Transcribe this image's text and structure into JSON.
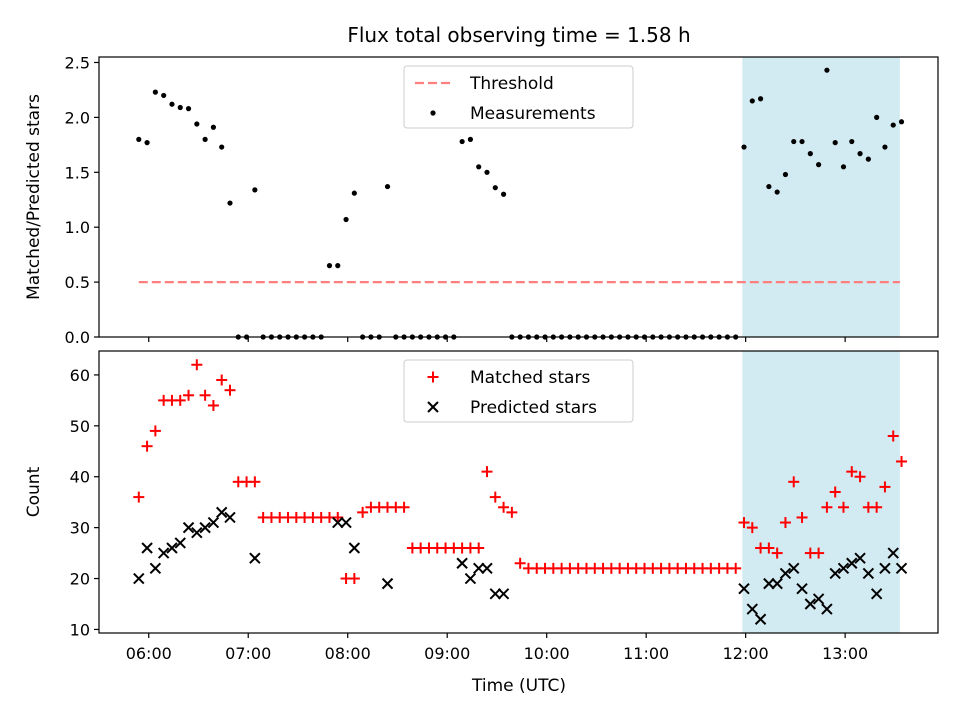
{
  "title": "Flux total observing time = 1.58 h",
  "xlabel": "Time (UTC)",
  "colors": {
    "threshold": "#ff7f7f",
    "measurement": "#000000",
    "matched": "#ff0000",
    "predicted": "#000000",
    "highlight": "#add8e6"
  },
  "chart_data": [
    {
      "type": "scatter",
      "ylabel": "Matched/Predicted stars",
      "xlim": [
        "05:30",
        "13:56"
      ],
      "ylim": [
        0,
        2.55
      ],
      "y_ticks": [
        "0.0",
        "0.5",
        "1.0",
        "1.5",
        "2.0",
        "2.5"
      ],
      "x_ticks": [
        "06:00",
        "07:00",
        "08:00",
        "09:00",
        "10:00",
        "11:00",
        "12:00",
        "13:00"
      ],
      "highlight_span": [
        "11:58",
        "13:33"
      ],
      "threshold": {
        "label": "Threshold",
        "value": 0.5,
        "x_range": [
          "05:54",
          "13:33"
        ]
      },
      "legend": {
        "position": "top-center",
        "entries": [
          "Threshold",
          "Measurements"
        ]
      },
      "series": [
        {
          "name": "Measurements",
          "points": [
            [
              "05:54",
              1.8
            ],
            [
              "05:59",
              1.77
            ],
            [
              "06:04",
              2.23
            ],
            [
              "06:09",
              2.2
            ],
            [
              "06:14",
              2.12
            ],
            [
              "06:19",
              2.09
            ],
            [
              "06:24",
              2.08
            ],
            [
              "06:29",
              1.94
            ],
            [
              "06:34",
              1.8
            ],
            [
              "06:39",
              1.91
            ],
            [
              "06:44",
              1.73
            ],
            [
              "06:49",
              1.22
            ],
            [
              "06:54",
              0
            ],
            [
              "06:59",
              0
            ],
            [
              "07:04",
              1.34
            ],
            [
              "07:09",
              0
            ],
            [
              "07:14",
              0
            ],
            [
              "07:19",
              0
            ],
            [
              "07:24",
              0
            ],
            [
              "07:29",
              0
            ],
            [
              "07:34",
              0
            ],
            [
              "07:39",
              0
            ],
            [
              "07:44",
              0
            ],
            [
              "07:49",
              0.65
            ],
            [
              "07:54",
              0.65
            ],
            [
              "07:59",
              1.07
            ],
            [
              "08:04",
              1.31
            ],
            [
              "08:09",
              0
            ],
            [
              "08:14",
              0
            ],
            [
              "08:19",
              0
            ],
            [
              "08:24",
              1.37
            ],
            [
              "08:29",
              0
            ],
            [
              "08:34",
              0
            ],
            [
              "08:39",
              0
            ],
            [
              "08:44",
              0
            ],
            [
              "08:49",
              0
            ],
            [
              "08:54",
              0
            ],
            [
              "08:59",
              0
            ],
            [
              "09:04",
              0
            ],
            [
              "09:09",
              1.78
            ],
            [
              "09:14",
              1.8
            ],
            [
              "09:19",
              1.55
            ],
            [
              "09:24",
              1.5
            ],
            [
              "09:29",
              1.36
            ],
            [
              "09:34",
              1.3
            ],
            [
              "09:39",
              0
            ],
            [
              "09:44",
              0
            ],
            [
              "09:49",
              0
            ],
            [
              "09:54",
              0
            ],
            [
              "09:59",
              0
            ],
            [
              "10:04",
              0
            ],
            [
              "10:09",
              0
            ],
            [
              "10:14",
              0
            ],
            [
              "10:19",
              0
            ],
            [
              "10:24",
              0
            ],
            [
              "10:29",
              0
            ],
            [
              "10:34",
              0
            ],
            [
              "10:39",
              0
            ],
            [
              "10:44",
              0
            ],
            [
              "10:49",
              0
            ],
            [
              "10:54",
              0
            ],
            [
              "10:59",
              0
            ],
            [
              "11:04",
              0
            ],
            [
              "11:09",
              0
            ],
            [
              "11:14",
              0
            ],
            [
              "11:19",
              0
            ],
            [
              "11:24",
              0
            ],
            [
              "11:29",
              0
            ],
            [
              "11:34",
              0
            ],
            [
              "11:39",
              0
            ],
            [
              "11:44",
              0
            ],
            [
              "11:49",
              0
            ],
            [
              "11:54",
              0
            ],
            [
              "11:59",
              1.73
            ],
            [
              "12:04",
              2.15
            ],
            [
              "12:09",
              2.17
            ],
            [
              "12:14",
              1.37
            ],
            [
              "12:19",
              1.32
            ],
            [
              "12:24",
              1.48
            ],
            [
              "12:29",
              1.78
            ],
            [
              "12:34",
              1.78
            ],
            [
              "12:39",
              1.67
            ],
            [
              "12:44",
              1.57
            ],
            [
              "12:49",
              2.43
            ],
            [
              "12:54",
              1.77
            ],
            [
              "12:59",
              1.55
            ],
            [
              "13:04",
              1.78
            ],
            [
              "13:09",
              1.67
            ],
            [
              "13:14",
              1.62
            ],
            [
              "13:19",
              2.0
            ],
            [
              "13:24",
              1.73
            ],
            [
              "13:29",
              1.93
            ],
            [
              "13:34",
              1.96
            ]
          ]
        }
      ]
    },
    {
      "type": "scatter",
      "ylabel": "Count",
      "xlim": [
        "05:30",
        "13:56"
      ],
      "ylim": [
        9.3,
        64.7
      ],
      "y_ticks": [
        "10",
        "20",
        "30",
        "40",
        "50",
        "60"
      ],
      "x_ticks": [
        "06:00",
        "07:00",
        "08:00",
        "09:00",
        "10:00",
        "11:00",
        "12:00",
        "13:00"
      ],
      "highlight_span": [
        "11:58",
        "13:33"
      ],
      "legend": {
        "position": "top-center",
        "entries": [
          "Matched stars",
          "Predicted stars"
        ]
      },
      "series": [
        {
          "name": "Matched stars",
          "marker": "+",
          "points": [
            [
              "05:54",
              36
            ],
            [
              "05:59",
              46
            ],
            [
              "06:04",
              49
            ],
            [
              "06:09",
              55
            ],
            [
              "06:14",
              55
            ],
            [
              "06:19",
              55
            ],
            [
              "06:24",
              56
            ],
            [
              "06:29",
              62
            ],
            [
              "06:34",
              56
            ],
            [
              "06:39",
              54
            ],
            [
              "06:44",
              59
            ],
            [
              "06:49",
              57
            ],
            [
              "06:54",
              39
            ],
            [
              "06:59",
              39
            ],
            [
              "07:04",
              39
            ],
            [
              "07:09",
              32
            ],
            [
              "07:14",
              32
            ],
            [
              "07:19",
              32
            ],
            [
              "07:24",
              32
            ],
            [
              "07:29",
              32
            ],
            [
              "07:34",
              32
            ],
            [
              "07:39",
              32
            ],
            [
              "07:44",
              32
            ],
            [
              "07:49",
              32
            ],
            [
              "07:54",
              32
            ],
            [
              "07:59",
              20
            ],
            [
              "08:04",
              20
            ],
            [
              "08:09",
              33
            ],
            [
              "08:14",
              34
            ],
            [
              "08:19",
              34
            ],
            [
              "08:24",
              34
            ],
            [
              "08:29",
              34
            ],
            [
              "08:34",
              34
            ],
            [
              "08:39",
              26
            ],
            [
              "08:44",
              26
            ],
            [
              "08:49",
              26
            ],
            [
              "08:54",
              26
            ],
            [
              "08:59",
              26
            ],
            [
              "09:04",
              26
            ],
            [
              "09:09",
              26
            ],
            [
              "09:14",
              26
            ],
            [
              "09:19",
              26
            ],
            [
              "09:24",
              41
            ],
            [
              "09:29",
              36
            ],
            [
              "09:34",
              34
            ],
            [
              "09:39",
              33
            ],
            [
              "09:44",
              23
            ],
            [
              "09:49",
              22
            ],
            [
              "09:54",
              22
            ],
            [
              "09:59",
              22
            ],
            [
              "10:04",
              22
            ],
            [
              "10:09",
              22
            ],
            [
              "10:14",
              22
            ],
            [
              "10:19",
              22
            ],
            [
              "10:24",
              22
            ],
            [
              "10:29",
              22
            ],
            [
              "10:34",
              22
            ],
            [
              "10:39",
              22
            ],
            [
              "10:44",
              22
            ],
            [
              "10:49",
              22
            ],
            [
              "10:54",
              22
            ],
            [
              "10:59",
              22
            ],
            [
              "11:04",
              22
            ],
            [
              "11:09",
              22
            ],
            [
              "11:14",
              22
            ],
            [
              "11:19",
              22
            ],
            [
              "11:24",
              22
            ],
            [
              "11:29",
              22
            ],
            [
              "11:34",
              22
            ],
            [
              "11:39",
              22
            ],
            [
              "11:44",
              22
            ],
            [
              "11:49",
              22
            ],
            [
              "11:54",
              22
            ],
            [
              "11:59",
              31
            ],
            [
              "12:04",
              30
            ],
            [
              "12:09",
              26
            ],
            [
              "12:14",
              26
            ],
            [
              "12:19",
              25
            ],
            [
              "12:24",
              31
            ],
            [
              "12:29",
              39
            ],
            [
              "12:34",
              32
            ],
            [
              "12:39",
              25
            ],
            [
              "12:44",
              25
            ],
            [
              "12:49",
              34
            ],
            [
              "12:54",
              37
            ],
            [
              "12:59",
              34
            ],
            [
              "13:04",
              41
            ],
            [
              "13:09",
              40
            ],
            [
              "13:14",
              34
            ],
            [
              "13:19",
              34
            ],
            [
              "13:24",
              38
            ],
            [
              "13:29",
              48
            ],
            [
              "13:34",
              43
            ]
          ]
        },
        {
          "name": "Predicted stars",
          "marker": "x",
          "points": [
            [
              "05:54",
              20
            ],
            [
              "05:59",
              26
            ],
            [
              "06:04",
              22
            ],
            [
              "06:09",
              25
            ],
            [
              "06:14",
              26
            ],
            [
              "06:19",
              27
            ],
            [
              "06:24",
              30
            ],
            [
              "06:29",
              29
            ],
            [
              "06:34",
              30
            ],
            [
              "06:39",
              31
            ],
            [
              "06:44",
              33
            ],
            [
              "06:49",
              32
            ],
            [
              "07:04",
              24
            ],
            [
              "07:54",
              31
            ],
            [
              "07:59",
              31
            ],
            [
              "08:04",
              26
            ],
            [
              "08:24",
              19
            ],
            [
              "09:09",
              23
            ],
            [
              "09:14",
              20
            ],
            [
              "09:19",
              22
            ],
            [
              "09:24",
              22
            ],
            [
              "09:29",
              17
            ],
            [
              "09:34",
              17
            ],
            [
              "11:59",
              18
            ],
            [
              "12:04",
              14
            ],
            [
              "12:09",
              12
            ],
            [
              "12:14",
              19
            ],
            [
              "12:19",
              19
            ],
            [
              "12:24",
              21
            ],
            [
              "12:29",
              22
            ],
            [
              "12:34",
              18
            ],
            [
              "12:39",
              15
            ],
            [
              "12:44",
              16
            ],
            [
              "12:49",
              14
            ],
            [
              "12:54",
              21
            ],
            [
              "12:59",
              22
            ],
            [
              "13:04",
              23
            ],
            [
              "13:09",
              24
            ],
            [
              "13:14",
              21
            ],
            [
              "13:19",
              17
            ],
            [
              "13:24",
              22
            ],
            [
              "13:29",
              25
            ],
            [
              "13:34",
              22
            ]
          ]
        }
      ]
    }
  ]
}
